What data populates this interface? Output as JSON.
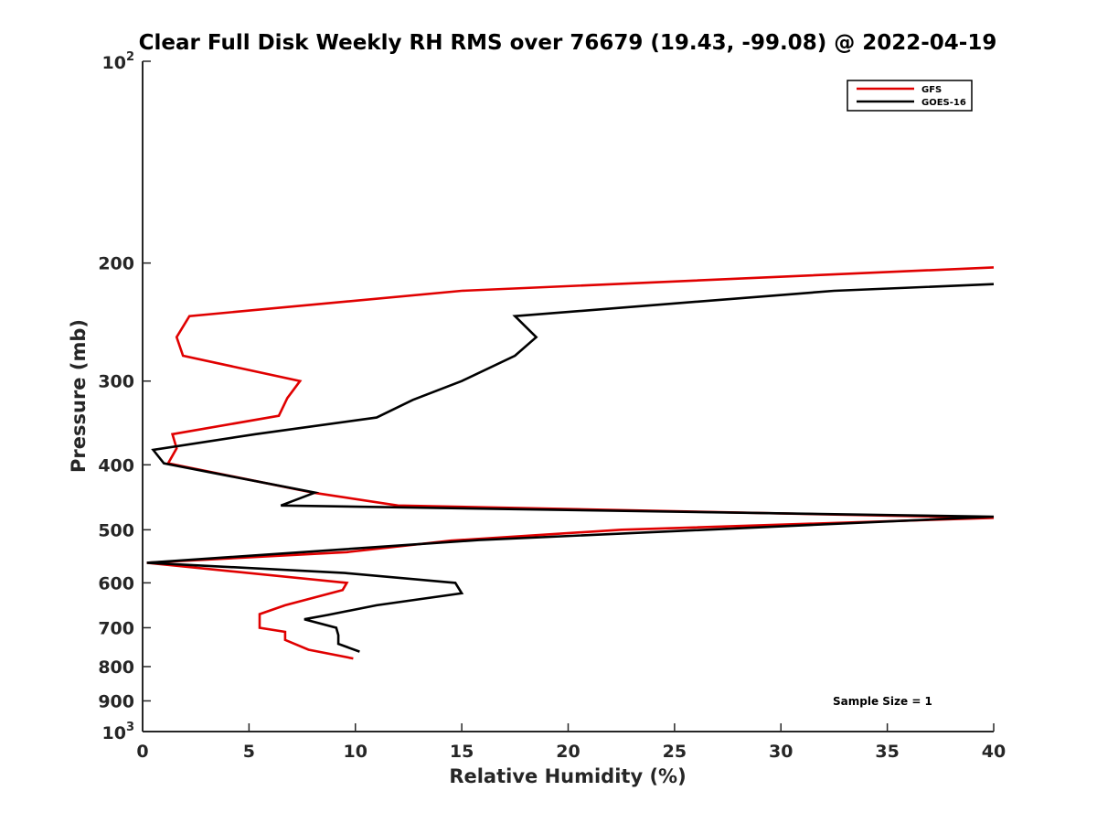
{
  "chart_data": {
    "type": "line",
    "title": "Clear Full Disk Weekly RH RMS over 76679 (19.43, -99.08) @ 2022-04-19",
    "xlabel": "Relative Humidity (%)",
    "ylabel": "Pressure (mb)",
    "xlim": [
      0,
      40
    ],
    "ylim": [
      100,
      1000
    ],
    "y_scale": "log",
    "y_reversed": true,
    "grid": false,
    "x_ticks": [
      0,
      5,
      10,
      15,
      20,
      25,
      30,
      35,
      40
    ],
    "x_tick_labels": [
      "0",
      "5",
      "10",
      "15",
      "20",
      "25",
      "30",
      "35",
      "40"
    ],
    "y_ticks": [
      200,
      300,
      400,
      500,
      600,
      700,
      800,
      900
    ],
    "y_tick_labels": [
      "200",
      "300",
      "400",
      "500",
      "600",
      "700",
      "800",
      "900"
    ],
    "y_edge_labels": [
      {
        "value": 100,
        "base": "10",
        "exp": "2"
      },
      {
        "value": 1000,
        "base": "10",
        "exp": "3"
      }
    ],
    "legend_position": "top-right",
    "annotation": "Sample Size = 1",
    "series": [
      {
        "name": "GFS",
        "color": "#e00000",
        "x": [
          40.0,
          15.0,
          2.2,
          1.6,
          1.9,
          7.4,
          6.8,
          6.4,
          1.4,
          1.6,
          1.2,
          8.0,
          12.0,
          40.0,
          22.5,
          14.5,
          9.6,
          0.2,
          9.6,
          9.4,
          6.7,
          5.5,
          5.5,
          6.7,
          6.7,
          7.8,
          9.9
        ],
        "y": [
          203,
          220,
          240,
          258,
          275,
          300,
          318,
          338,
          360,
          378,
          398,
          440,
          460,
          480,
          500,
          519,
          540,
          560,
          600,
          615,
          648,
          668,
          700,
          710,
          730,
          755,
          778
        ]
      },
      {
        "name": "GOES-16",
        "color": "#000000",
        "x": [
          40.0,
          32.5,
          17.5,
          18.5,
          17.5,
          15.0,
          12.7,
          11.0,
          5.3,
          0.5,
          1.0,
          8.1,
          6.5,
          40.0,
          15.8,
          0.2,
          9.5,
          14.7,
          15.0,
          11.0,
          8.7,
          7.6,
          9.1,
          9.2,
          9.2,
          10.2
        ],
        "y": [
          215,
          220,
          240,
          258,
          275,
          300,
          320,
          340,
          360,
          380,
          398,
          440,
          460,
          478,
          518,
          560,
          580,
          600,
          622,
          648,
          670,
          680,
          700,
          718,
          740,
          760
        ]
      }
    ]
  }
}
